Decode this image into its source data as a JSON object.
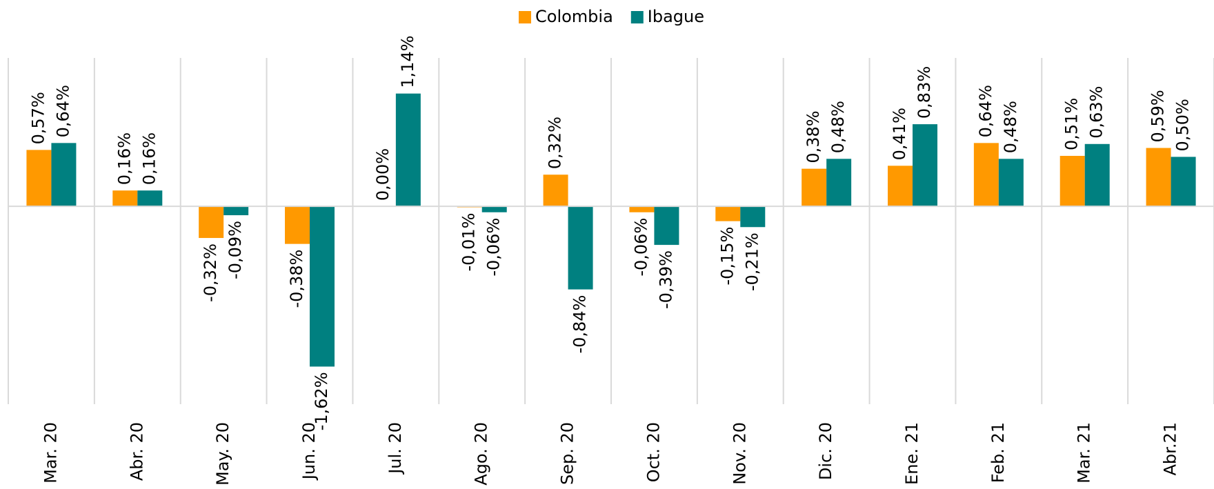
{
  "chart_data": {
    "type": "bar",
    "categories": [
      "Mar. 20",
      "Abr. 20",
      "May. 20",
      "Jun. 20",
      "Jul. 20",
      "Ago. 20",
      "Sep. 20",
      "Oct. 20",
      "Nov. 20",
      "Dic. 20",
      "Ene. 21",
      "Feb. 21",
      "Mar. 21",
      "Abr.21"
    ],
    "series": [
      {
        "name": "Colombia",
        "color": "#ff9900",
        "values": [
          0.57,
          0.16,
          -0.32,
          -0.38,
          0.0,
          -0.01,
          0.32,
          -0.06,
          -0.15,
          0.38,
          0.41,
          0.64,
          0.51,
          0.59
        ],
        "value_labels": [
          "0,57%",
          "0,16%",
          "-0,32%",
          "-0,38%",
          "0,00%",
          "-0,01%",
          "0,32%",
          "-0,06%",
          "-0,15%",
          "0,38%",
          "0,41%",
          "0,64%",
          "0,51%",
          "0,59%"
        ]
      },
      {
        "name": "Ibague",
        "color": "#008080",
        "values": [
          0.64,
          0.16,
          -0.09,
          -1.62,
          1.14,
          -0.06,
          -0.84,
          -0.39,
          -0.21,
          0.48,
          0.83,
          0.48,
          0.63,
          0.5
        ],
        "value_labels": [
          "0,64%",
          "0,16%",
          "-0,09%",
          "-1,62%",
          "1,14%",
          "-0,06%",
          "-0,84%",
          "-0,39%",
          "-0,21%",
          "0,48%",
          "0,83%",
          "0,48%",
          "0,63%",
          "0,50%"
        ]
      }
    ],
    "ylim": [
      -2,
      1.5
    ],
    "legend": "top"
  }
}
